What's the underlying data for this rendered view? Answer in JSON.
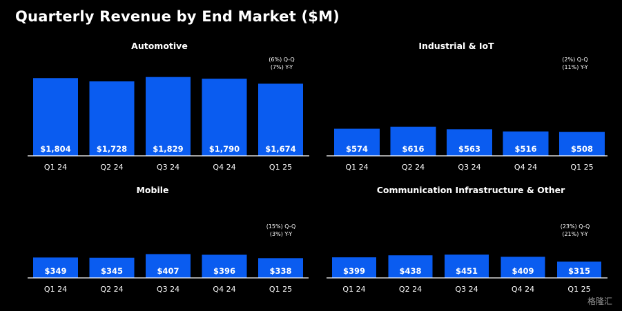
{
  "title": "Quarterly Revenue by End Market ($M)",
  "watermark": "格隆汇",
  "colors": {
    "bar": "#0a5cf0",
    "background": "#000000",
    "text": "#ffffff",
    "axis": "#ffffff"
  },
  "chart_data": [
    {
      "type": "bar",
      "title": "Automotive",
      "categories": [
        "Q1 24",
        "Q2 24",
        "Q3 24",
        "Q4 24",
        "Q1 25"
      ],
      "values": [
        1804,
        1728,
        1829,
        1790,
        1674
      ],
      "value_labels": [
        "$1,804",
        "$1,728",
        "$1,829",
        "$1,790",
        "$1,674"
      ],
      "annotations": [
        "(6%) Q-Q",
        "(7%) Y-Y"
      ],
      "ylim": [
        0,
        1900
      ]
    },
    {
      "type": "bar",
      "title": "Industrial & IoT",
      "categories": [
        "Q1 24",
        "Q2 24",
        "Q3 24",
        "Q4 24",
        "Q1 25"
      ],
      "values": [
        574,
        616,
        563,
        516,
        508
      ],
      "value_labels": [
        "$574",
        "$616",
        "$563",
        "$516",
        "$508"
      ],
      "annotations": [
        "(2%) Q-Q",
        "(11%) Y-Y"
      ],
      "ylim": [
        0,
        1900
      ]
    },
    {
      "type": "bar",
      "title": "Mobile",
      "categories": [
        "Q1 24",
        "Q2 24",
        "Q3 24",
        "Q4 24",
        "Q1 25"
      ],
      "values": [
        349,
        345,
        407,
        396,
        338
      ],
      "value_labels": [
        "$349",
        "$345",
        "$407",
        "$396",
        "$338"
      ],
      "annotations": [
        "(15%) Q-Q",
        "(3%) Y-Y"
      ],
      "ylim": [
        0,
        1900
      ]
    },
    {
      "type": "bar",
      "title": "Communication Infrastructure & Other",
      "categories": [
        "Q1 24",
        "Q2 24",
        "Q3 24",
        "Q4 24",
        "Q1 25"
      ],
      "values": [
        399,
        438,
        451,
        409,
        315
      ],
      "value_labels": [
        "$399",
        "$438",
        "$451",
        "$409",
        "$315"
      ],
      "annotations": [
        "(23%) Q-Q",
        "(21%) Y-Y"
      ],
      "ylim": [
        0,
        1900
      ]
    }
  ]
}
